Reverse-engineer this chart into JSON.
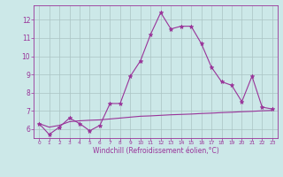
{
  "x": [
    0,
    1,
    2,
    3,
    4,
    5,
    6,
    7,
    8,
    9,
    10,
    11,
    12,
    13,
    14,
    15,
    16,
    17,
    18,
    19,
    20,
    21,
    22,
    23
  ],
  "y_main": [
    6.3,
    5.7,
    6.1,
    6.6,
    6.3,
    5.9,
    6.2,
    7.4,
    7.4,
    8.9,
    9.75,
    11.2,
    12.4,
    11.5,
    11.65,
    11.65,
    10.7,
    9.4,
    8.6,
    8.4,
    7.5,
    8.9,
    7.2,
    7.1
  ],
  "y_smooth": [
    6.3,
    6.1,
    6.2,
    6.4,
    6.45,
    6.48,
    6.5,
    6.55,
    6.6,
    6.65,
    6.7,
    6.72,
    6.75,
    6.78,
    6.8,
    6.82,
    6.85,
    6.87,
    6.9,
    6.92,
    6.95,
    6.97,
    7.0,
    7.02
  ],
  "line_color": "#993399",
  "bg_color": "#cce8e8",
  "grid_color": "#aac4c4",
  "xlabel": "Windchill (Refroidissement éolien,°C)",
  "xlim": [
    -0.5,
    23.5
  ],
  "ylim": [
    5.5,
    12.8
  ],
  "yticks": [
    6,
    7,
    8,
    9,
    10,
    11,
    12
  ],
  "xticks": [
    0,
    1,
    2,
    3,
    4,
    5,
    6,
    7,
    8,
    9,
    10,
    11,
    12,
    13,
    14,
    15,
    16,
    17,
    18,
    19,
    20,
    21,
    22,
    23
  ],
  "xlabel_fontsize": 5.5,
  "ytick_fontsize": 5.5,
  "xtick_fontsize": 4.2
}
